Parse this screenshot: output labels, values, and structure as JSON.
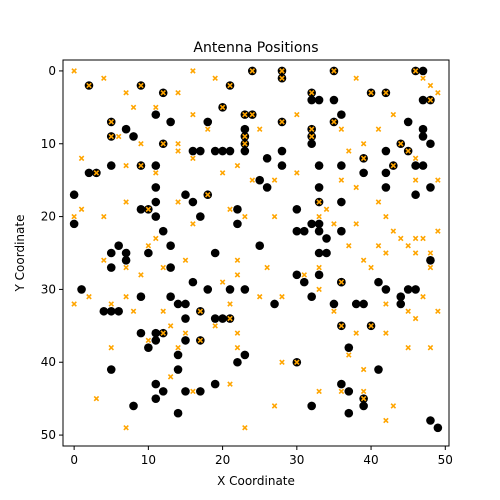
{
  "chart_data": {
    "type": "scatter",
    "title": "Antenna Positions",
    "xlabel": "X Coordinate",
    "ylabel": "Y Coordinate",
    "xlim": [
      -1.5,
      50.5
    ],
    "ylim": [
      -1.5,
      51.5
    ],
    "y_inverted": true,
    "grid": false,
    "legend": "none",
    "x_ticks": [
      0,
      10,
      20,
      30,
      40,
      50
    ],
    "y_ticks": [
      0,
      10,
      20,
      30,
      40,
      50
    ],
    "colors": {
      "black": "#000000",
      "orange": "#ffa500"
    },
    "series": [
      {
        "marker": "circle",
        "color": "#000000",
        "points": [
          [
            2,
            2
          ],
          [
            9,
            2
          ],
          [
            12,
            3
          ],
          [
            21,
            2
          ],
          [
            24,
            0
          ],
          [
            28,
            0
          ],
          [
            28,
            1
          ],
          [
            32,
            3
          ],
          [
            32,
            4
          ],
          [
            33,
            4
          ],
          [
            35,
            0
          ],
          [
            35,
            4
          ],
          [
            40,
            3
          ],
          [
            42,
            3
          ],
          [
            46,
            0
          ],
          [
            47,
            0
          ],
          [
            47,
            4
          ],
          [
            48,
            4
          ],
          [
            5,
            7
          ],
          [
            5,
            9
          ],
          [
            7,
            8
          ],
          [
            8,
            9
          ],
          [
            11,
            6
          ],
          [
            12,
            10
          ],
          [
            13,
            7
          ],
          [
            18,
            7
          ],
          [
            20,
            5
          ],
          [
            23,
            6
          ],
          [
            23,
            8
          ],
          [
            24,
            6
          ],
          [
            28,
            7
          ],
          [
            32,
            8
          ],
          [
            32,
            9
          ],
          [
            35,
            7
          ],
          [
            36,
            6
          ],
          [
            39,
            12
          ],
          [
            42,
            11
          ],
          [
            44,
            10
          ],
          [
            45,
            7
          ],
          [
            47,
            8
          ],
          [
            47,
            9
          ],
          [
            48,
            10
          ],
          [
            2,
            14
          ],
          [
            3,
            14
          ],
          [
            5,
            13
          ],
          [
            9,
            13
          ],
          [
            11,
            13
          ],
          [
            16,
            11
          ],
          [
            17,
            11
          ],
          [
            19,
            11
          ],
          [
            20,
            11
          ],
          [
            21,
            11
          ],
          [
            23,
            9
          ],
          [
            23,
            10
          ],
          [
            23,
            11
          ],
          [
            26,
            12
          ],
          [
            28,
            11
          ],
          [
            28,
            13
          ],
          [
            32,
            10
          ],
          [
            33,
            13
          ],
          [
            36,
            13
          ],
          [
            39,
            14
          ],
          [
            42,
            14
          ],
          [
            43,
            13
          ],
          [
            45,
            11
          ],
          [
            46,
            13
          ],
          [
            47,
            13
          ],
          [
            48,
            16
          ],
          [
            0,
            17
          ],
          [
            0,
            21
          ],
          [
            9,
            19
          ],
          [
            10,
            19
          ],
          [
            11,
            16
          ],
          [
            11,
            18
          ],
          [
            11,
            20
          ],
          [
            15,
            17
          ],
          [
            16,
            18
          ],
          [
            17,
            20
          ],
          [
            18,
            17
          ],
          [
            22,
            19
          ],
          [
            22,
            21
          ],
          [
            25,
            15
          ],
          [
            26,
            16
          ],
          [
            30,
            19
          ],
          [
            33,
            16
          ],
          [
            33,
            18
          ],
          [
            36,
            18
          ],
          [
            42,
            16
          ],
          [
            46,
            17
          ],
          [
            5,
            25
          ],
          [
            5,
            27
          ],
          [
            6,
            24
          ],
          [
            7,
            25
          ],
          [
            7,
            26
          ],
          [
            10,
            25
          ],
          [
            12,
            22
          ],
          [
            13,
            24
          ],
          [
            13,
            27
          ],
          [
            16,
            29
          ],
          [
            19,
            25
          ],
          [
            21,
            30
          ],
          [
            25,
            24
          ],
          [
            30,
            22
          ],
          [
            31,
            22
          ],
          [
            32,
            21
          ],
          [
            33,
            21
          ],
          [
            33,
            22
          ],
          [
            33,
            25
          ],
          [
            34,
            23
          ],
          [
            34,
            25
          ],
          [
            36,
            22
          ],
          [
            36,
            29
          ],
          [
            48,
            26
          ],
          [
            1,
            30
          ],
          [
            4,
            33
          ],
          [
            5,
            33
          ],
          [
            6,
            33
          ],
          [
            9,
            31
          ],
          [
            9,
            36
          ],
          [
            11,
            36
          ],
          [
            13,
            31
          ],
          [
            14,
            32
          ],
          [
            15,
            32
          ],
          [
            15,
            34
          ],
          [
            17,
            33
          ],
          [
            18,
            30
          ],
          [
            19,
            34
          ],
          [
            20,
            34
          ],
          [
            21,
            34
          ],
          [
            23,
            30
          ],
          [
            27,
            32
          ],
          [
            30,
            28
          ],
          [
            31,
            29
          ],
          [
            32,
            31
          ],
          [
            33,
            28
          ],
          [
            35,
            32
          ],
          [
            36,
            29
          ],
          [
            38,
            32
          ],
          [
            39,
            32
          ],
          [
            40,
            35
          ],
          [
            41,
            29
          ],
          [
            42,
            30
          ],
          [
            44,
            31
          ],
          [
            44,
            32
          ],
          [
            45,
            30
          ],
          [
            46,
            30
          ],
          [
            5,
            41
          ],
          [
            10,
            38
          ],
          [
            11,
            37
          ],
          [
            12,
            36
          ],
          [
            14,
            39
          ],
          [
            14,
            41
          ],
          [
            15,
            37
          ],
          [
            17,
            37
          ],
          [
            22,
            40
          ],
          [
            23,
            39
          ],
          [
            30,
            40
          ],
          [
            36,
            35
          ],
          [
            37,
            38
          ],
          [
            8,
            46
          ],
          [
            11,
            43
          ],
          [
            11,
            45
          ],
          [
            12,
            44
          ],
          [
            14,
            47
          ],
          [
            15,
            44
          ],
          [
            17,
            44
          ],
          [
            19,
            43
          ],
          [
            32,
            46
          ],
          [
            36,
            43
          ],
          [
            37,
            44
          ],
          [
            37,
            47
          ],
          [
            39,
            45
          ],
          [
            39,
            46
          ],
          [
            41,
            41
          ],
          [
            48,
            48
          ],
          [
            49,
            49
          ]
        ]
      },
      {
        "marker": "x",
        "color": "#ffa500",
        "points": [
          [
            0,
            0
          ],
          [
            2,
            2
          ],
          [
            4,
            1
          ],
          [
            7,
            3
          ],
          [
            8,
            5
          ],
          [
            9,
            2
          ],
          [
            12,
            3
          ],
          [
            14,
            3
          ],
          [
            16,
            0
          ],
          [
            19,
            1
          ],
          [
            21,
            2
          ],
          [
            24,
            0
          ],
          [
            28,
            0
          ],
          [
            28,
            1
          ],
          [
            32,
            3
          ],
          [
            35,
            0
          ],
          [
            38,
            1
          ],
          [
            40,
            3
          ],
          [
            42,
            3
          ],
          [
            46,
            0
          ],
          [
            47,
            1
          ],
          [
            48,
            2
          ],
          [
            48,
            4
          ],
          [
            49,
            3
          ],
          [
            5,
            7
          ],
          [
            5,
            9
          ],
          [
            6,
            9
          ],
          [
            9,
            10
          ],
          [
            11,
            5
          ],
          [
            12,
            10
          ],
          [
            14,
            10
          ],
          [
            16,
            6
          ],
          [
            18,
            8
          ],
          [
            20,
            5
          ],
          [
            23,
            6
          ],
          [
            24,
            6
          ],
          [
            23,
            9
          ],
          [
            23,
            10
          ],
          [
            25,
            8
          ],
          [
            28,
            7
          ],
          [
            30,
            6
          ],
          [
            32,
            8
          ],
          [
            32,
            9
          ],
          [
            35,
            7
          ],
          [
            36,
            8
          ],
          [
            37,
            11
          ],
          [
            39,
            10
          ],
          [
            39,
            12
          ],
          [
            41,
            8
          ],
          [
            43,
            6
          ],
          [
            44,
            10
          ],
          [
            45,
            11
          ],
          [
            46,
            12
          ],
          [
            1,
            12
          ],
          [
            3,
            14
          ],
          [
            7,
            13
          ],
          [
            9,
            13
          ],
          [
            11,
            14
          ],
          [
            14,
            11
          ],
          [
            16,
            12
          ],
          [
            20,
            14
          ],
          [
            22,
            13
          ],
          [
            24,
            15
          ],
          [
            27,
            15
          ],
          [
            30,
            14
          ],
          [
            36,
            15
          ],
          [
            38,
            16
          ],
          [
            41,
            18
          ],
          [
            43,
            13
          ],
          [
            46,
            15
          ],
          [
            49,
            15
          ],
          [
            0,
            20
          ],
          [
            1,
            19
          ],
          [
            4,
            20
          ],
          [
            7,
            18
          ],
          [
            10,
            19
          ],
          [
            11,
            23
          ],
          [
            14,
            18
          ],
          [
            16,
            21
          ],
          [
            18,
            17
          ],
          [
            21,
            19
          ],
          [
            23,
            20
          ],
          [
            27,
            20
          ],
          [
            33,
            18
          ],
          [
            33,
            20
          ],
          [
            34,
            19
          ],
          [
            35,
            21
          ],
          [
            38,
            21
          ],
          [
            42,
            20
          ],
          [
            43,
            22
          ],
          [
            44,
            23
          ],
          [
            46,
            23
          ],
          [
            47,
            23
          ],
          [
            48,
            25
          ],
          [
            49,
            22
          ],
          [
            4,
            26
          ],
          [
            7,
            27
          ],
          [
            9,
            28
          ],
          [
            10,
            24
          ],
          [
            12,
            27
          ],
          [
            15,
            26
          ],
          [
            20,
            29
          ],
          [
            22,
            28
          ],
          [
            22,
            26
          ],
          [
            26,
            27
          ],
          [
            31,
            28
          ],
          [
            33,
            27
          ],
          [
            36,
            29
          ],
          [
            37,
            24
          ],
          [
            39,
            26
          ],
          [
            40,
            27
          ],
          [
            41,
            24
          ],
          [
            42,
            25
          ],
          [
            45,
            24
          ],
          [
            46,
            25
          ],
          [
            48,
            27
          ],
          [
            0,
            32
          ],
          [
            2,
            31
          ],
          [
            5,
            32
          ],
          [
            7,
            31
          ],
          [
            8,
            33
          ],
          [
            12,
            33
          ],
          [
            13,
            35
          ],
          [
            15,
            36
          ],
          [
            17,
            33
          ],
          [
            19,
            35
          ],
          [
            21,
            32
          ],
          [
            21,
            34
          ],
          [
            22,
            36
          ],
          [
            25,
            31
          ],
          [
            28,
            31
          ],
          [
            33,
            30
          ],
          [
            35,
            33
          ],
          [
            36,
            35
          ],
          [
            38,
            36
          ],
          [
            40,
            35
          ],
          [
            42,
            32
          ],
          [
            45,
            33
          ],
          [
            46,
            34
          ],
          [
            47,
            31
          ],
          [
            49,
            33
          ],
          [
            5,
            38
          ],
          [
            10,
            37
          ],
          [
            12,
            36
          ],
          [
            14,
            38
          ],
          [
            17,
            37
          ],
          [
            22,
            38
          ],
          [
            28,
            40
          ],
          [
            30,
            40
          ],
          [
            37,
            39
          ],
          [
            39,
            41
          ],
          [
            42,
            36
          ],
          [
            45,
            38
          ],
          [
            48,
            38
          ],
          [
            3,
            45
          ],
          [
            7,
            49
          ],
          [
            13,
            42
          ],
          [
            16,
            44
          ],
          [
            21,
            43
          ],
          [
            23,
            49
          ],
          [
            27,
            46
          ],
          [
            33,
            44
          ],
          [
            36,
            44
          ],
          [
            39,
            44
          ],
          [
            39,
            45
          ],
          [
            42,
            48
          ],
          [
            43,
            46
          ]
        ]
      }
    ]
  }
}
